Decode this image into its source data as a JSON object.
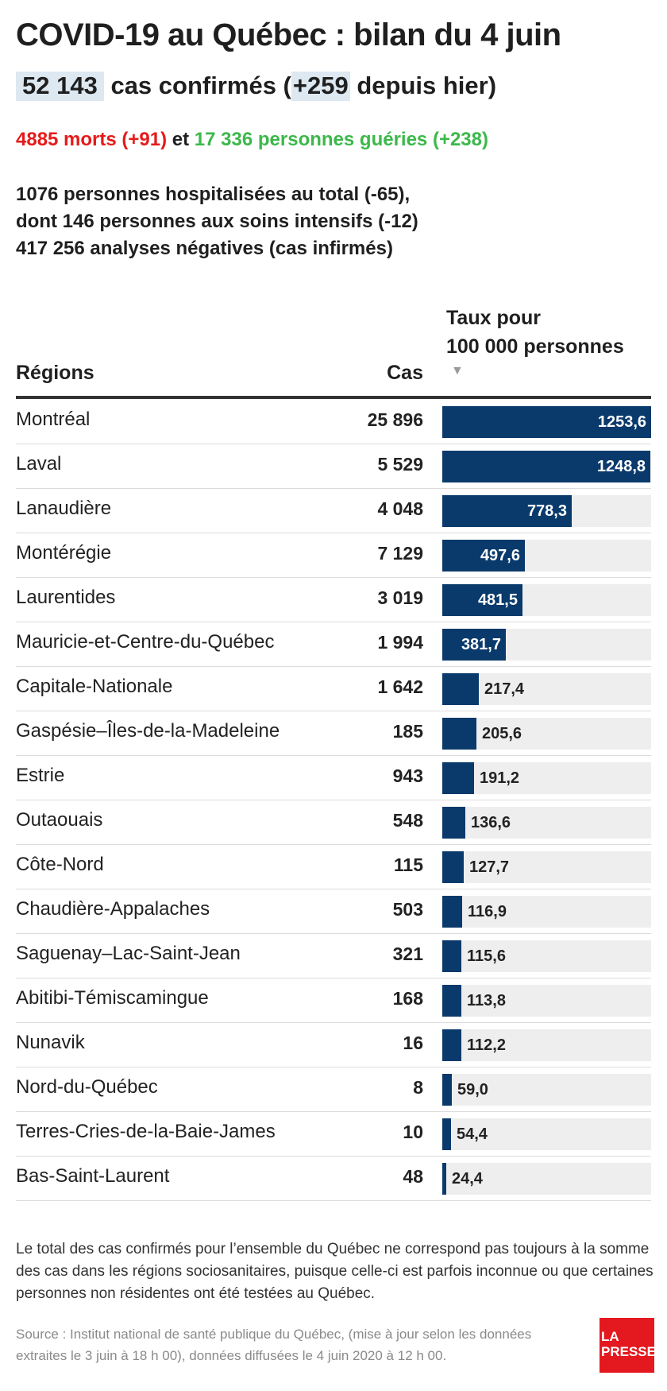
{
  "header": {
    "title": "COVID-19 au Québec : bilan du 4 juin",
    "confirmed_count": "52 143",
    "confirmed_mid": "cas confirmés (",
    "confirmed_delta": "+259",
    "confirmed_tail": " depuis hier)",
    "deaths": "4885 morts (+91)",
    "connector": " et ",
    "recovered": "17 336 personnes guéries (+238)",
    "stats": [
      "1076 personnes hospitalisées au total (-65),",
      "dont 146 personnes aux soins intensifs (-12)",
      "417 256 analyses négatives (cas infirmés)"
    ]
  },
  "table_headers": {
    "regions": "Régions",
    "cas": "Cas",
    "rate_line1": "Taux pour",
    "rate_line2": "100 000 personnes",
    "sort_arrow": "▼"
  },
  "chart_data": {
    "type": "bar",
    "orientation": "horizontal",
    "xlim": [
      0,
      1253.6
    ],
    "categories": [
      "Montréal",
      "Laval",
      "Lanaudière",
      "Montérégie",
      "Laurentides",
      "Mauricie-et-Centre-du-Québec",
      "Capitale-Nationale",
      "Gaspésie–Îles-de-la-Madeleine",
      "Estrie",
      "Outaouais",
      "Côte-Nord",
      "Chaudière-Appalaches",
      "Saguenay–Lac-Saint-Jean",
      "Abitibi-Témiscamingue",
      "Nunavik",
      "Nord-du-Québec",
      "Terres-Cries-de-la-Baie-James",
      "Bas-Saint-Laurent"
    ],
    "cases": [
      "25 896",
      "5 529",
      "4 048",
      "7 129",
      "3 019",
      "1 994",
      "1 642",
      "185",
      "943",
      "548",
      "115",
      "503",
      "321",
      "168",
      "16",
      "8",
      "10",
      "48"
    ],
    "values": [
      1253.6,
      1248.8,
      778.3,
      497.6,
      481.5,
      381.7,
      217.4,
      205.6,
      191.2,
      136.6,
      127.7,
      116.9,
      115.6,
      113.8,
      112.2,
      59.0,
      54.4,
      24.4
    ],
    "value_labels": [
      "1253,6",
      "1248,8",
      "778,3",
      "497,6",
      "481,5",
      "381,7",
      "217,4",
      "205,6",
      "191,2",
      "136,6",
      "127,7",
      "116,9",
      "115,6",
      "113,8",
      "112,2",
      "59,0",
      "54,4",
      "24,4"
    ]
  },
  "colors": {
    "bar": "#0a3a6b",
    "track": "#eeeeee",
    "deaths": "#e51b1b",
    "recovered": "#3cb84a",
    "highlight": "#dde8f1",
    "logo": "#e3191f"
  },
  "footer": {
    "note": "Le total des cas confirmés pour l’ensemble du Québec ne correspond pas toujours à la somme des cas dans les régions sociosanitaires, puisque celle-ci est parfois inconnue ou que certaines personnes non résidentes ont été testées au Québec.",
    "source": "Source : Institut national de santé publique du Québec, (mise à jour selon les données extraites le 3 juin à 18 h 00), données diffusées le 4 juin 2020 à 12 h 00.",
    "logo_line1": "LA",
    "logo_line2": "PRESSE"
  }
}
